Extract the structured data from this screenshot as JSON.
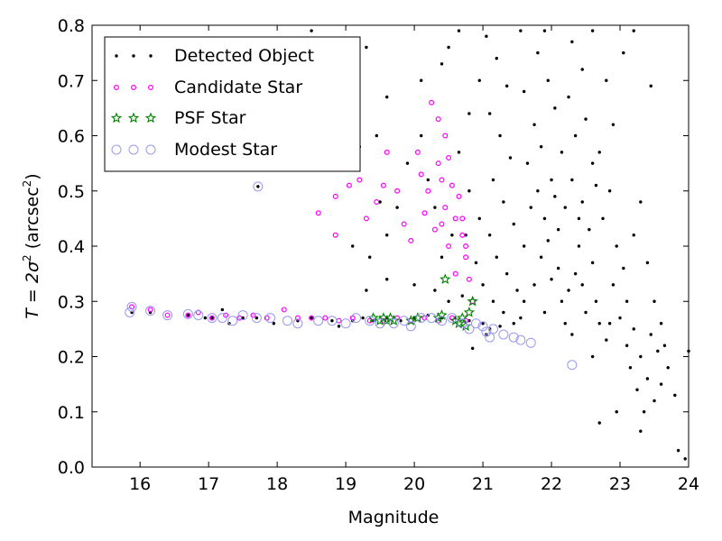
{
  "chart_data": {
    "type": "scatter",
    "xlabel": "Magnitude",
    "ylabel": {
      "prefix": "T = 2σ",
      "exp": "2",
      "unit": " (arcsec",
      "unit_exp": "2",
      "close": ")"
    },
    "xlim": [
      15.3,
      24.0
    ],
    "ylim": [
      0.0,
      0.8
    ],
    "xticks": [
      "16",
      "17",
      "18",
      "19",
      "20",
      "21",
      "22",
      "23",
      "24"
    ],
    "xtick_values": [
      16,
      17,
      18,
      19,
      20,
      21,
      22,
      23,
      24
    ],
    "yticks": [
      "0.0",
      "0.1",
      "0.2",
      "0.3",
      "0.4",
      "0.5",
      "0.6",
      "0.7",
      "0.8"
    ],
    "ytick_values": [
      0.0,
      0.1,
      0.2,
      0.3,
      0.4,
      0.5,
      0.6,
      0.7,
      0.8
    ],
    "grid": false,
    "legend_position": "top-left",
    "series": [
      {
        "name": "Detected Object",
        "marker": "dot",
        "color": "#000000",
        "points": [
          [
            15.88,
            0.28
          ],
          [
            16.15,
            0.28
          ],
          [
            16.7,
            0.275
          ],
          [
            16.95,
            0.27
          ],
          [
            17.05,
            0.27
          ],
          [
            17.2,
            0.285
          ],
          [
            17.3,
            0.26
          ],
          [
            17.5,
            0.27
          ],
          [
            17.7,
            0.27
          ],
          [
            17.72,
            0.508
          ],
          [
            17.95,
            0.26
          ],
          [
            18.3,
            0.265
          ],
          [
            18.5,
            0.27
          ],
          [
            18.8,
            0.265
          ],
          [
            18.9,
            0.255
          ],
          [
            19.1,
            0.265
          ],
          [
            19.25,
            0.27
          ],
          [
            19.4,
            0.265
          ],
          [
            19.6,
            0.27
          ],
          [
            19.8,
            0.265
          ],
          [
            20.0,
            0.27
          ],
          [
            20.2,
            0.275
          ],
          [
            20.4,
            0.27
          ],
          [
            20.6,
            0.27
          ],
          [
            20.8,
            0.265
          ],
          [
            21.0,
            0.26
          ],
          [
            21.1,
            0.25
          ],
          [
            20.85,
            0.215
          ],
          [
            21.05,
            0.24
          ],
          [
            21.25,
            0.255
          ],
          [
            19.3,
            0.32
          ],
          [
            19.6,
            0.34
          ],
          [
            20.0,
            0.33
          ],
          [
            20.3,
            0.32
          ],
          [
            20.5,
            0.3
          ],
          [
            20.7,
            0.31
          ],
          [
            19.1,
            0.4
          ],
          [
            19.35,
            0.38
          ],
          [
            19.6,
            0.42
          ],
          [
            19.5,
            0.48
          ],
          [
            19.75,
            0.47
          ],
          [
            19.2,
            0.58
          ],
          [
            19.45,
            0.6
          ],
          [
            19.6,
            0.67
          ],
          [
            19.3,
            0.76
          ],
          [
            18.7,
            0.77
          ],
          [
            18.95,
            0.72
          ],
          [
            18.5,
            0.79
          ],
          [
            20.1,
            0.7
          ],
          [
            20.4,
            0.73
          ],
          [
            20.5,
            0.76
          ],
          [
            20.65,
            0.79
          ],
          [
            20.8,
            0.64
          ],
          [
            20.95,
            0.7
          ],
          [
            20.65,
            0.57
          ],
          [
            20.8,
            0.5
          ],
          [
            20.95,
            0.45
          ],
          [
            20.55,
            0.42
          ],
          [
            20.9,
            0.37
          ],
          [
            21.0,
            0.33
          ],
          [
            20.4,
            0.38
          ],
          [
            20.75,
            0.42
          ],
          [
            20.2,
            0.52
          ],
          [
            20.3,
            0.47
          ],
          [
            19.9,
            0.55
          ],
          [
            20.1,
            0.6
          ],
          [
            21.05,
            0.78
          ],
          [
            21.2,
            0.74
          ],
          [
            21.35,
            0.69
          ],
          [
            21.1,
            0.64
          ],
          [
            21.25,
            0.6
          ],
          [
            21.4,
            0.56
          ],
          [
            21.15,
            0.52
          ],
          [
            21.3,
            0.48
          ],
          [
            21.45,
            0.44
          ],
          [
            21.1,
            0.42
          ],
          [
            21.2,
            0.38
          ],
          [
            21.35,
            0.35
          ],
          [
            21.5,
            0.32
          ],
          [
            21.15,
            0.3
          ],
          [
            21.3,
            0.28
          ],
          [
            21.55,
            0.27
          ],
          [
            21.6,
            0.4
          ],
          [
            21.7,
            0.47
          ],
          [
            21.65,
            0.55
          ],
          [
            21.75,
            0.62
          ],
          [
            21.6,
            0.68
          ],
          [
            21.8,
            0.75
          ],
          [
            21.9,
            0.79
          ],
          [
            21.55,
            0.79
          ],
          [
            21.95,
            0.7
          ],
          [
            22.05,
            0.65
          ],
          [
            21.85,
            0.58
          ],
          [
            22.0,
            0.52
          ],
          [
            21.9,
            0.45
          ],
          [
            22.1,
            0.43
          ],
          [
            21.85,
            0.38
          ],
          [
            22.0,
            0.34
          ],
          [
            22.15,
            0.3
          ],
          [
            21.9,
            0.28
          ],
          [
            22.2,
            0.26
          ],
          [
            22.3,
            0.24
          ],
          [
            22.2,
            0.47
          ],
          [
            22.3,
            0.52
          ],
          [
            22.15,
            0.57
          ],
          [
            22.35,
            0.6
          ],
          [
            22.25,
            0.67
          ],
          [
            22.45,
            0.72
          ],
          [
            22.3,
            0.77
          ],
          [
            22.6,
            0.79
          ],
          [
            22.5,
            0.63
          ],
          [
            22.6,
            0.55
          ],
          [
            22.45,
            0.48
          ],
          [
            22.55,
            0.43
          ],
          [
            22.4,
            0.4
          ],
          [
            22.6,
            0.37
          ],
          [
            22.45,
            0.33
          ],
          [
            22.65,
            0.3
          ],
          [
            22.5,
            0.28
          ],
          [
            22.7,
            0.26
          ],
          [
            22.8,
            0.23
          ],
          [
            22.6,
            0.2
          ],
          [
            22.75,
            0.45
          ],
          [
            22.85,
            0.5
          ],
          [
            22.7,
            0.57
          ],
          [
            22.9,
            0.62
          ],
          [
            22.8,
            0.7
          ],
          [
            23.05,
            0.75
          ],
          [
            23.2,
            0.79
          ],
          [
            22.95,
            0.4
          ],
          [
            23.05,
            0.36
          ],
          [
            22.9,
            0.33
          ],
          [
            23.1,
            0.3
          ],
          [
            23.0,
            0.27
          ],
          [
            23.2,
            0.25
          ],
          [
            23.1,
            0.22
          ],
          [
            23.3,
            0.2
          ],
          [
            23.15,
            0.18
          ],
          [
            23.4,
            0.16
          ],
          [
            23.25,
            0.14
          ],
          [
            23.5,
            0.12
          ],
          [
            23.35,
            0.1
          ],
          [
            23.6,
            0.15
          ],
          [
            23.7,
            0.18
          ],
          [
            23.55,
            0.21
          ],
          [
            23.8,
            0.13
          ],
          [
            23.3,
            0.065
          ],
          [
            22.95,
            0.1
          ],
          [
            22.7,
            0.08
          ],
          [
            23.85,
            0.03
          ],
          [
            23.95,
            0.015
          ],
          [
            24.0,
            0.21
          ],
          [
            23.45,
            0.69
          ],
          [
            23.2,
            0.42
          ],
          [
            23.3,
            0.48
          ],
          [
            23.4,
            0.37
          ],
          [
            23.5,
            0.3
          ],
          [
            23.6,
            0.26
          ],
          [
            22.35,
            0.35
          ],
          [
            22.25,
            0.32
          ],
          [
            22.1,
            0.36
          ],
          [
            21.95,
            0.41
          ],
          [
            22.05,
            0.49
          ],
          [
            21.75,
            0.33
          ],
          [
            21.6,
            0.3
          ],
          [
            21.45,
            0.26
          ],
          [
            22.85,
            0.26
          ],
          [
            23.45,
            0.24
          ],
          [
            23.65,
            0.22
          ],
          [
            21.8,
            0.5
          ],
          [
            22.4,
            0.45
          ],
          [
            22.65,
            0.51
          ]
        ]
      },
      {
        "name": "Candidate Star",
        "marker": "open-circle-small",
        "color": "#ff00ff",
        "points": [
          [
            15.88,
            0.29
          ],
          [
            16.15,
            0.285
          ],
          [
            16.4,
            0.275
          ],
          [
            16.7,
            0.275
          ],
          [
            16.85,
            0.28
          ],
          [
            17.05,
            0.27
          ],
          [
            17.25,
            0.275
          ],
          [
            17.45,
            0.27
          ],
          [
            17.65,
            0.275
          ],
          [
            17.85,
            0.27
          ],
          [
            18.1,
            0.285
          ],
          [
            18.3,
            0.27
          ],
          [
            18.5,
            0.27
          ],
          [
            18.7,
            0.27
          ],
          [
            18.9,
            0.265
          ],
          [
            19.1,
            0.27
          ],
          [
            19.35,
            0.265
          ],
          [
            19.55,
            0.265
          ],
          [
            19.75,
            0.27
          ],
          [
            19.95,
            0.265
          ],
          [
            20.15,
            0.27
          ],
          [
            20.35,
            0.265
          ],
          [
            20.55,
            0.27
          ],
          [
            20.75,
            0.265
          ],
          [
            18.6,
            0.46
          ],
          [
            18.85,
            0.42
          ],
          [
            18.85,
            0.49
          ],
          [
            19.05,
            0.51
          ],
          [
            19.2,
            0.52
          ],
          [
            19.3,
            0.45
          ],
          [
            19.45,
            0.48
          ],
          [
            19.55,
            0.51
          ],
          [
            19.6,
            0.57
          ],
          [
            19.75,
            0.5
          ],
          [
            19.85,
            0.44
          ],
          [
            19.95,
            0.41
          ],
          [
            20.05,
            0.57
          ],
          [
            20.1,
            0.53
          ],
          [
            20.15,
            0.46
          ],
          [
            20.2,
            0.5
          ],
          [
            20.25,
            0.66
          ],
          [
            20.3,
            0.43
          ],
          [
            20.35,
            0.55
          ],
          [
            20.4,
            0.52
          ],
          [
            20.45,
            0.47
          ],
          [
            20.5,
            0.56
          ],
          [
            20.55,
            0.51
          ],
          [
            20.6,
            0.45
          ],
          [
            20.65,
            0.49
          ],
          [
            20.7,
            0.42
          ],
          [
            20.75,
            0.38
          ],
          [
            20.8,
            0.34
          ],
          [
            20.85,
            0.3
          ],
          [
            20.6,
            0.35
          ],
          [
            20.5,
            0.4
          ],
          [
            20.4,
            0.44
          ],
          [
            20.35,
            0.63
          ],
          [
            20.45,
            0.6
          ],
          [
            20.7,
            0.45
          ],
          [
            20.75,
            0.4
          ]
        ]
      },
      {
        "name": "PSF Star",
        "marker": "star",
        "color": "#008000",
        "points": [
          [
            19.4,
            0.27
          ],
          [
            19.5,
            0.265
          ],
          [
            19.55,
            0.27
          ],
          [
            19.6,
            0.265
          ],
          [
            19.65,
            0.27
          ],
          [
            19.7,
            0.265
          ],
          [
            19.95,
            0.265
          ],
          [
            20.05,
            0.27
          ],
          [
            20.35,
            0.27
          ],
          [
            20.4,
            0.275
          ],
          [
            20.6,
            0.265
          ],
          [
            20.65,
            0.26
          ],
          [
            20.7,
            0.27
          ],
          [
            20.75,
            0.255
          ],
          [
            20.8,
            0.28
          ],
          [
            20.85,
            0.3
          ],
          [
            20.45,
            0.34
          ]
        ]
      },
      {
        "name": "Modest Star",
        "marker": "open-circle-large",
        "color": "#9999ee",
        "points": [
          [
            15.85,
            0.28
          ],
          [
            15.88,
            0.29
          ],
          [
            16.15,
            0.283
          ],
          [
            16.4,
            0.275
          ],
          [
            16.7,
            0.277
          ],
          [
            16.85,
            0.275
          ],
          [
            17.05,
            0.27
          ],
          [
            17.2,
            0.27
          ],
          [
            17.35,
            0.265
          ],
          [
            17.5,
            0.275
          ],
          [
            17.7,
            0.27
          ],
          [
            17.72,
            0.508
          ],
          [
            17.9,
            0.27
          ],
          [
            18.15,
            0.265
          ],
          [
            18.3,
            0.26
          ],
          [
            18.6,
            0.265
          ],
          [
            18.8,
            0.265
          ],
          [
            19.0,
            0.26
          ],
          [
            19.15,
            0.27
          ],
          [
            19.35,
            0.265
          ],
          [
            19.5,
            0.26
          ],
          [
            19.7,
            0.26
          ],
          [
            19.85,
            0.265
          ],
          [
            19.95,
            0.255
          ],
          [
            20.1,
            0.27
          ],
          [
            20.25,
            0.27
          ],
          [
            20.4,
            0.265
          ],
          [
            20.55,
            0.27
          ],
          [
            20.7,
            0.26
          ],
          [
            20.8,
            0.25
          ],
          [
            20.9,
            0.26
          ],
          [
            21.0,
            0.255
          ],
          [
            21.05,
            0.245
          ],
          [
            21.1,
            0.235
          ],
          [
            21.15,
            0.25
          ],
          [
            21.3,
            0.24
          ],
          [
            21.45,
            0.235
          ],
          [
            21.55,
            0.23
          ],
          [
            21.7,
            0.225
          ],
          [
            22.3,
            0.185
          ]
        ]
      }
    ]
  }
}
